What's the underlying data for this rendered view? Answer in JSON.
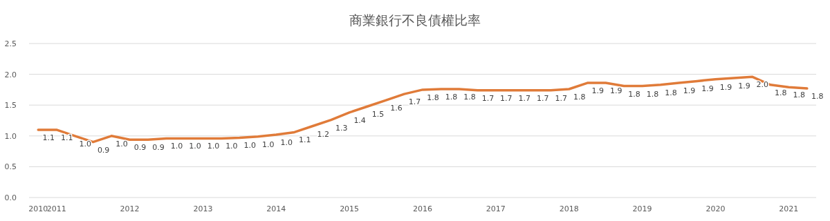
{
  "chart_data": {
    "type": "line",
    "title": "商業銀行不良債權比率",
    "categories": [
      "2010",
      "2011",
      null,
      null,
      null,
      "2012",
      null,
      null,
      null,
      "2013",
      null,
      null,
      null,
      "2014",
      null,
      null,
      null,
      "2015",
      null,
      null,
      null,
      "2016",
      null,
      null,
      null,
      "2017",
      null,
      null,
      null,
      "2018",
      null,
      null,
      null,
      "2019",
      null,
      null,
      null,
      "2020",
      null,
      null,
      null,
      "2021",
      null
    ],
    "values": [
      1.1,
      1.1,
      1.0,
      0.9,
      1.0,
      0.94,
      0.94,
      0.96,
      0.96,
      0.96,
      0.96,
      0.97,
      0.99,
      1.02,
      1.06,
      1.16,
      1.26,
      1.38,
      1.48,
      1.58,
      1.68,
      1.75,
      1.76,
      1.76,
      1.74,
      1.74,
      1.74,
      1.74,
      1.74,
      1.76,
      1.86,
      1.86,
      1.81,
      1.81,
      1.83,
      1.86,
      1.89,
      1.92,
      1.94,
      1.96,
      1.83,
      1.79,
      1.77
    ],
    "value_labels": [
      "1.1",
      "1.1",
      "1.0",
      "0.9",
      "1.0",
      "0.9",
      "0.9",
      "1.0",
      "1.0",
      "1.0",
      "1.0",
      "1.0",
      "1.0",
      "1.0",
      "1.1",
      "1.2",
      "1.3",
      "1.4",
      "1.5",
      "1.6",
      "1.7",
      "1.8",
      "1.8",
      "1.8",
      "1.7",
      "1.7",
      "1.7",
      "1.7",
      "1.7",
      "1.8",
      "1.9",
      "1.9",
      "1.8",
      "1.8",
      "1.8",
      "1.9",
      "1.9",
      "1.9",
      "1.9",
      "2.0",
      "1.8",
      "1.8",
      "1.8"
    ],
    "color": "#e07b39",
    "ylim": [
      0,
      2.5
    ],
    "yticks": [
      {
        "value": 0,
        "label": "0.0"
      },
      {
        "value": 0.5,
        "label": "0.5"
      },
      {
        "value": 1,
        "label": "1.0"
      },
      {
        "value": 1.5,
        "label": "1.5"
      },
      {
        "value": 2,
        "label": "2.0"
      },
      {
        "value": 2.5,
        "label": "2.5"
      }
    ],
    "grid": "y"
  }
}
